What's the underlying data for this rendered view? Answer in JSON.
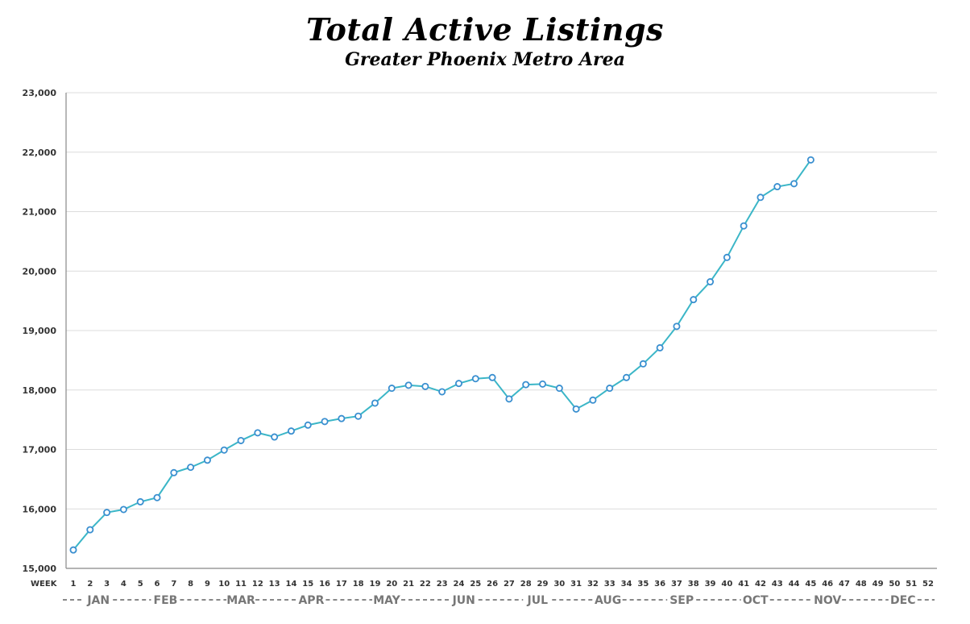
{
  "chart_data": {
    "type": "line",
    "title": "Total Active Listings",
    "subtitle": "Greater Phoenix Metro Area",
    "xlabel": "WEEK",
    "ylabel": "",
    "ylim": [
      15000,
      23000
    ],
    "y_ticks": [
      15000,
      16000,
      17000,
      18000,
      19000,
      20000,
      21000,
      22000,
      23000
    ],
    "y_tick_labels": [
      "15,000",
      "16,000",
      "17,000",
      "18,000",
      "19,000",
      "20,000",
      "21,000",
      "22,000",
      "23,000"
    ],
    "x_ticks": [
      1,
      2,
      3,
      4,
      5,
      6,
      7,
      8,
      9,
      10,
      11,
      12,
      13,
      14,
      15,
      16,
      17,
      18,
      19,
      20,
      21,
      22,
      23,
      24,
      25,
      26,
      27,
      28,
      29,
      30,
      31,
      32,
      33,
      34,
      35,
      36,
      37,
      38,
      39,
      40,
      41,
      42,
      43,
      44,
      45,
      46,
      47,
      48,
      49,
      50,
      51,
      52
    ],
    "month_axis": [
      {
        "label": "JAN",
        "week": 2.5
      },
      {
        "label": "FEB",
        "week": 6.5
      },
      {
        "label": "MAR",
        "week": 11
      },
      {
        "label": "APR",
        "week": 15.2
      },
      {
        "label": "MAY",
        "week": 19.7
      },
      {
        "label": "JUN",
        "week": 24.3
      },
      {
        "label": "JUL",
        "week": 28.7
      },
      {
        "label": "AUG",
        "week": 32.9
      },
      {
        "label": "SEP",
        "week": 37.3
      },
      {
        "label": "OCT",
        "week": 41.7
      },
      {
        "label": "NOV",
        "week": 46
      },
      {
        "label": "DEC",
        "week": 50.5
      }
    ],
    "grid": true,
    "line_color": "#3bb6c7",
    "marker_color": "#3a8fd0",
    "series": [
      {
        "x": [
          1,
          2,
          3,
          4,
          5,
          6,
          7,
          8,
          9,
          10,
          11,
          12,
          13,
          14,
          15,
          16,
          17,
          18,
          19,
          20,
          21,
          22,
          23,
          24,
          25,
          26,
          27,
          28,
          29,
          30,
          31,
          32,
          33,
          34,
          35,
          36,
          37,
          38,
          39,
          40,
          41,
          42,
          43,
          44,
          45
        ],
        "values": [
          15310,
          15650,
          15940,
          15990,
          16120,
          16190,
          16610,
          16700,
          16820,
          16990,
          17150,
          17280,
          17210,
          17310,
          17410,
          17470,
          17520,
          17560,
          17780,
          18030,
          18080,
          18060,
          17970,
          18110,
          18190,
          18210,
          17850,
          18090,
          18100,
          18030,
          17680,
          17830,
          18030,
          18210,
          18440,
          18710,
          19070,
          19520,
          19820,
          20230,
          20760,
          21240,
          21420,
          21470,
          21870
        ]
      }
    ]
  }
}
